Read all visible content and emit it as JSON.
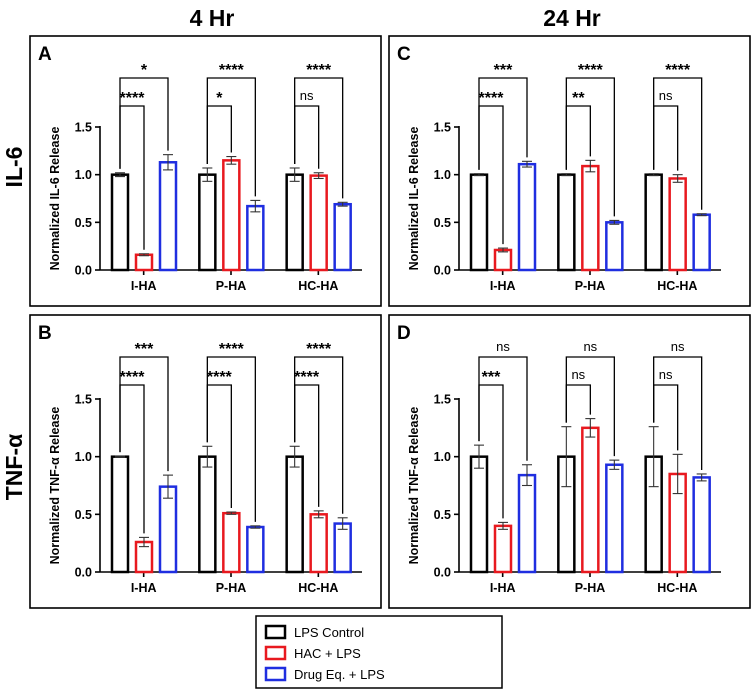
{
  "figure": {
    "column_titles": [
      "4 Hr",
      "24 Hr"
    ],
    "row_titles": [
      "IL-6",
      "TNF-α"
    ]
  },
  "legend": {
    "items": [
      {
        "label": "LPS Control",
        "color": "#000000"
      },
      {
        "label": "HAC + LPS",
        "color": "#e8191f"
      },
      {
        "label": "Drug Eq. + LPS",
        "color": "#1f2ee0"
      }
    ]
  },
  "chart_data": [
    {
      "panel": "A",
      "type": "bar",
      "ylabel": "Normalized IL-6 Release",
      "ylim": [
        0,
        1.5
      ],
      "yticks": [
        "0.0",
        "0.5",
        "1.0",
        "1.5"
      ],
      "categories": [
        "I-HA",
        "P-HA",
        "HC-HA"
      ],
      "series": [
        {
          "name": "LPS Control",
          "values": [
            1.0,
            1.0,
            1.0
          ],
          "errors": [
            0.02,
            0.07,
            0.07
          ]
        },
        {
          "name": "HAC + LPS",
          "values": [
            0.16,
            1.15,
            0.99
          ],
          "errors": [
            0.01,
            0.04,
            0.03
          ]
        },
        {
          "name": "Drug Eq. + LPS",
          "values": [
            1.13,
            0.67,
            0.69
          ],
          "errors": [
            0.08,
            0.06,
            0.02
          ]
        }
      ],
      "annotations": [
        {
          "category": 0,
          "to": 1,
          "level": 1,
          "label": "****"
        },
        {
          "category": 0,
          "to": 2,
          "level": 2,
          "label": "*"
        },
        {
          "category": 1,
          "to": 1,
          "level": 1,
          "label": "*"
        },
        {
          "category": 1,
          "to": 2,
          "level": 2,
          "label": "****"
        },
        {
          "category": 2,
          "to": 1,
          "level": 1,
          "label": "ns"
        },
        {
          "category": 2,
          "to": 2,
          "level": 2,
          "label": "****"
        }
      ]
    },
    {
      "panel": "C",
      "type": "bar",
      "ylabel": "Normalized IL-6 Release",
      "ylim": [
        0,
        1.5
      ],
      "yticks": [
        "0.0",
        "0.5",
        "1.0",
        "1.5"
      ],
      "categories": [
        "I-HA",
        "P-HA",
        "HC-HA"
      ],
      "series": [
        {
          "name": "LPS Control",
          "values": [
            1.0,
            1.0,
            1.0
          ],
          "errors": [
            0.01,
            0.01,
            0.01
          ]
        },
        {
          "name": "HAC + LPS",
          "values": [
            0.21,
            1.09,
            0.96
          ],
          "errors": [
            0.02,
            0.06,
            0.04
          ]
        },
        {
          "name": "Drug Eq. + LPS",
          "values": [
            1.11,
            0.5,
            0.58
          ],
          "errors": [
            0.03,
            0.02,
            0.01
          ]
        }
      ],
      "annotations": [
        {
          "category": 0,
          "to": 1,
          "level": 1,
          "label": "****"
        },
        {
          "category": 0,
          "to": 2,
          "level": 2,
          "label": "***"
        },
        {
          "category": 1,
          "to": 1,
          "level": 1,
          "label": "**"
        },
        {
          "category": 1,
          "to": 2,
          "level": 2,
          "label": "****"
        },
        {
          "category": 2,
          "to": 1,
          "level": 1,
          "label": "ns"
        },
        {
          "category": 2,
          "to": 2,
          "level": 2,
          "label": "****"
        }
      ]
    },
    {
      "panel": "B",
      "type": "bar",
      "ylabel": "Normalized TNF-α Release",
      "ylim": [
        0,
        1.5
      ],
      "yticks": [
        "0.0",
        "0.5",
        "1.0",
        "1.5"
      ],
      "categories": [
        "I-HA",
        "P-HA",
        "HC-HA"
      ],
      "series": [
        {
          "name": "LPS Control",
          "values": [
            1.0,
            1.0,
            1.0
          ],
          "errors": [
            0.005,
            0.09,
            0.09
          ]
        },
        {
          "name": "HAC + LPS",
          "values": [
            0.26,
            0.51,
            0.5
          ],
          "errors": [
            0.04,
            0.01,
            0.03
          ]
        },
        {
          "name": "Drug Eq. + LPS",
          "values": [
            0.74,
            0.39,
            0.42
          ],
          "errors": [
            0.1,
            0.01,
            0.05
          ]
        }
      ],
      "annotations": [
        {
          "category": 0,
          "to": 1,
          "level": 1,
          "label": "****"
        },
        {
          "category": 0,
          "to": 2,
          "level": 2,
          "label": "***"
        },
        {
          "category": 1,
          "to": 1,
          "level": 1,
          "label": "****"
        },
        {
          "category": 1,
          "to": 2,
          "level": 2,
          "label": "****"
        },
        {
          "category": 2,
          "to": 1,
          "level": 1,
          "label": "****"
        },
        {
          "category": 2,
          "to": 2,
          "level": 2,
          "label": "****"
        }
      ]
    },
    {
      "panel": "D",
      "type": "bar",
      "ylabel": "Normalized TNF-α Release",
      "ylim": [
        0,
        1.5
      ],
      "yticks": [
        "0.0",
        "0.5",
        "1.0",
        "1.5"
      ],
      "categories": [
        "I-HA",
        "P-HA",
        "HC-HA"
      ],
      "series": [
        {
          "name": "LPS Control",
          "values": [
            1.0,
            1.0,
            1.0
          ],
          "errors": [
            0.1,
            0.26,
            0.26
          ]
        },
        {
          "name": "HAC + LPS",
          "values": [
            0.4,
            1.25,
            0.85
          ],
          "errors": [
            0.03,
            0.08,
            0.17
          ]
        },
        {
          "name": "Drug Eq. + LPS",
          "values": [
            0.84,
            0.93,
            0.82
          ],
          "errors": [
            0.09,
            0.04,
            0.03
          ]
        }
      ],
      "annotations": [
        {
          "category": 0,
          "to": 1,
          "level": 1,
          "label": "***"
        },
        {
          "category": 0,
          "to": 2,
          "level": 2,
          "label": "ns"
        },
        {
          "category": 1,
          "to": 1,
          "level": 1,
          "label": "ns"
        },
        {
          "category": 1,
          "to": 2,
          "level": 2,
          "label": "ns"
        },
        {
          "category": 2,
          "to": 1,
          "level": 1,
          "label": "ns"
        },
        {
          "category": 2,
          "to": 2,
          "level": 2,
          "label": "ns"
        }
      ]
    }
  ]
}
